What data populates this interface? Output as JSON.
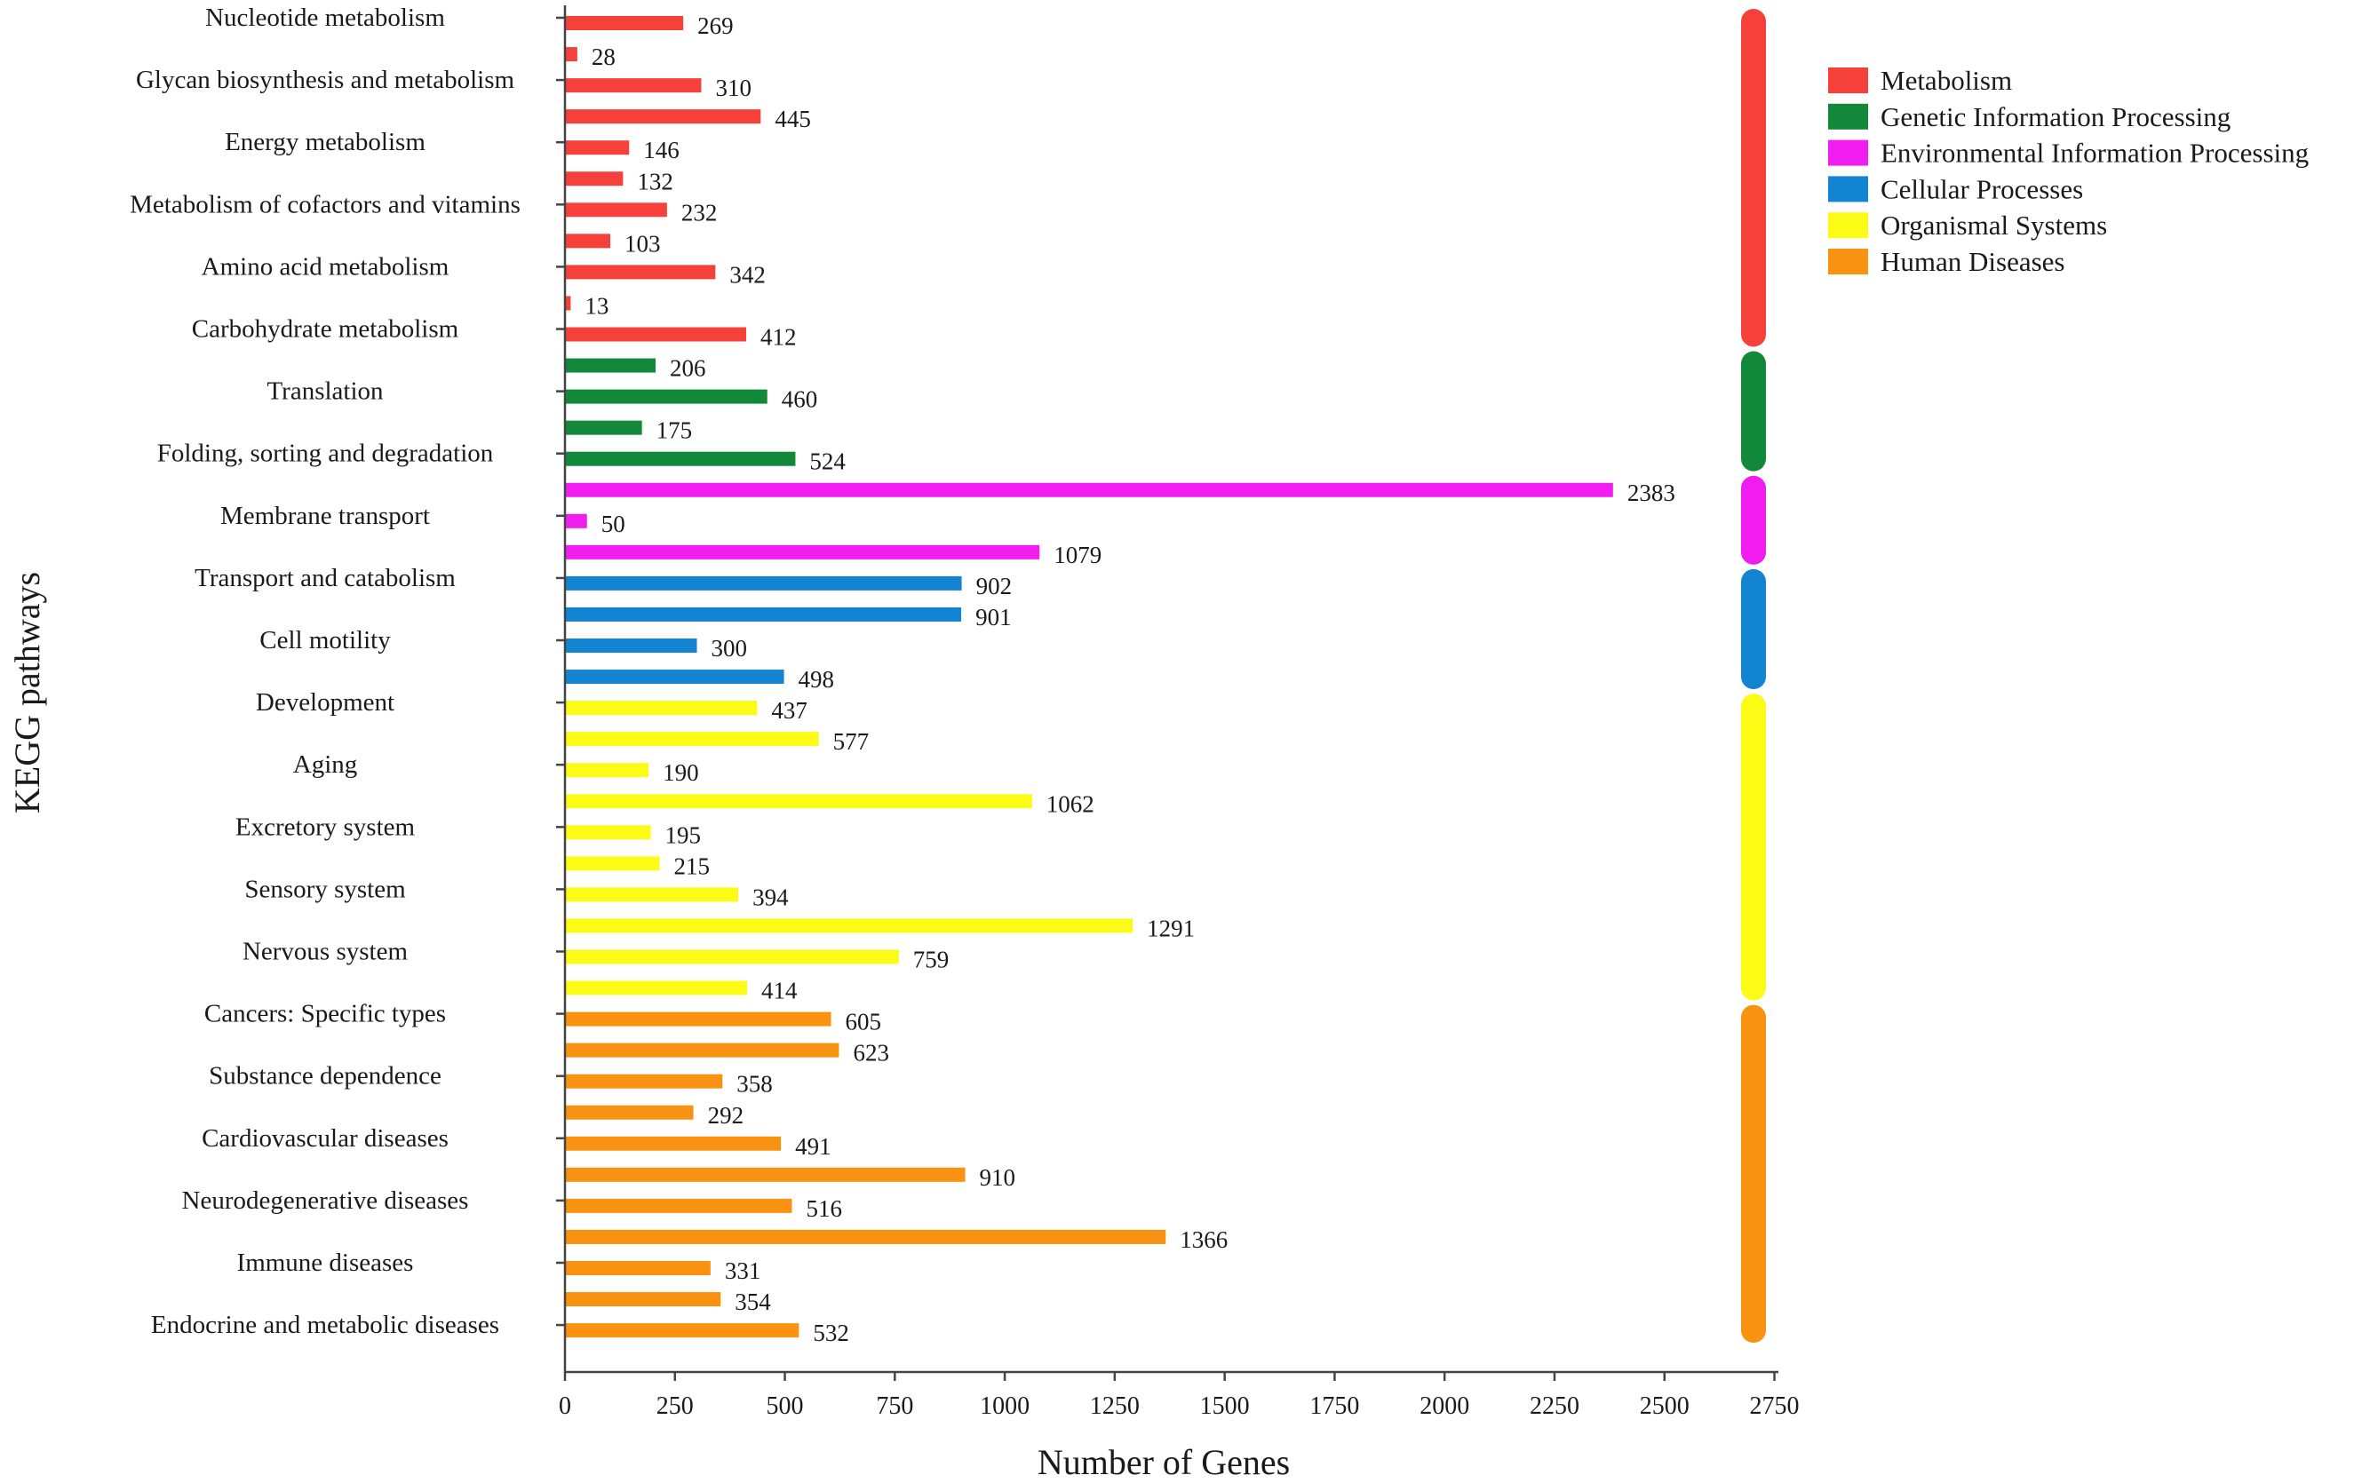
{
  "chart_data": {
    "type": "bar",
    "orientation": "horizontal",
    "xlabel": "Number of Genes",
    "ylabel": "KEGG pathways",
    "xlim": [
      0,
      2750
    ],
    "xticks": [
      0,
      250,
      500,
      750,
      1000,
      1250,
      1500,
      1750,
      2000,
      2250,
      2500,
      2750
    ],
    "bars": [
      {
        "value": 269,
        "category": "Metabolism"
      },
      {
        "value": 28,
        "category": "Metabolism"
      },
      {
        "value": 310,
        "category": "Metabolism"
      },
      {
        "value": 445,
        "category": "Metabolism"
      },
      {
        "value": 146,
        "category": "Metabolism"
      },
      {
        "value": 132,
        "category": "Metabolism"
      },
      {
        "value": 232,
        "category": "Metabolism"
      },
      {
        "value": 103,
        "category": "Metabolism"
      },
      {
        "value": 342,
        "category": "Metabolism"
      },
      {
        "value": 13,
        "category": "Metabolism"
      },
      {
        "value": 412,
        "category": "Metabolism"
      },
      {
        "value": 206,
        "category": "Genetic Information Processing"
      },
      {
        "value": 460,
        "category": "Genetic Information Processing"
      },
      {
        "value": 175,
        "category": "Genetic Information Processing"
      },
      {
        "value": 524,
        "category": "Genetic Information Processing"
      },
      {
        "value": 2383,
        "category": "Environmental Information Processing"
      },
      {
        "value": 50,
        "category": "Environmental Information Processing"
      },
      {
        "value": 1079,
        "category": "Environmental Information Processing"
      },
      {
        "value": 902,
        "category": "Cellular Processes"
      },
      {
        "value": 901,
        "category": "Cellular Processes"
      },
      {
        "value": 300,
        "category": "Cellular Processes"
      },
      {
        "value": 498,
        "category": "Cellular Processes"
      },
      {
        "value": 437,
        "category": "Organismal Systems"
      },
      {
        "value": 577,
        "category": "Organismal Systems"
      },
      {
        "value": 190,
        "category": "Organismal Systems"
      },
      {
        "value": 1062,
        "category": "Organismal Systems"
      },
      {
        "value": 195,
        "category": "Organismal Systems"
      },
      {
        "value": 215,
        "category": "Organismal Systems"
      },
      {
        "value": 394,
        "category": "Organismal Systems"
      },
      {
        "value": 1291,
        "category": "Organismal Systems"
      },
      {
        "value": 759,
        "category": "Organismal Systems"
      },
      {
        "value": 414,
        "category": "Organismal Systems"
      },
      {
        "value": 605,
        "category": "Human Diseases"
      },
      {
        "value": 623,
        "category": "Human Diseases"
      },
      {
        "value": 358,
        "category": "Human Diseases"
      },
      {
        "value": 292,
        "category": "Human Diseases"
      },
      {
        "value": 491,
        "category": "Human Diseases"
      },
      {
        "value": 910,
        "category": "Human Diseases"
      },
      {
        "value": 516,
        "category": "Human Diseases"
      },
      {
        "value": 1366,
        "category": "Human Diseases"
      },
      {
        "value": 331,
        "category": "Human Diseases"
      },
      {
        "value": 354,
        "category": "Human Diseases"
      },
      {
        "value": 532,
        "category": "Human Diseases"
      }
    ],
    "ytick_labels": [
      {
        "label": "Nucleotide metabolism",
        "bar_index": 0
      },
      {
        "label": "Glycan biosynthesis and metabolism",
        "bar_index": 2
      },
      {
        "label": "Energy metabolism",
        "bar_index": 4
      },
      {
        "label": "Metabolism of cofactors and vitamins",
        "bar_index": 6
      },
      {
        "label": "Amino acid metabolism",
        "bar_index": 8
      },
      {
        "label": "Carbohydrate metabolism",
        "bar_index": 10
      },
      {
        "label": "Translation",
        "bar_index": 12
      },
      {
        "label": "Folding, sorting and degradation",
        "bar_index": 14
      },
      {
        "label": "Membrane transport",
        "bar_index": 16
      },
      {
        "label": "Transport and catabolism",
        "bar_index": 18
      },
      {
        "label": "Cell motility",
        "bar_index": 20
      },
      {
        "label": "Development",
        "bar_index": 22
      },
      {
        "label": "Aging",
        "bar_index": 24
      },
      {
        "label": "Excretory system",
        "bar_index": 26
      },
      {
        "label": "Sensory system",
        "bar_index": 28
      },
      {
        "label": "Nervous system",
        "bar_index": 30
      },
      {
        "label": "Cancers: Specific types",
        "bar_index": 32
      },
      {
        "label": "Substance dependence",
        "bar_index": 34
      },
      {
        "label": "Cardiovascular diseases",
        "bar_index": 36
      },
      {
        "label": "Neurodegenerative diseases",
        "bar_index": 38
      },
      {
        "label": "Immune diseases",
        "bar_index": 40
      },
      {
        "label": "Endocrine and metabolic diseases",
        "bar_index": 42
      }
    ],
    "legend": {
      "placement": "top-right",
      "items": [
        {
          "name": "Metabolism",
          "color": "#f5413a"
        },
        {
          "name": "Genetic Information Processing",
          "color": "#12883a"
        },
        {
          "name": "Environmental Information Processing",
          "color": "#f01cf0"
        },
        {
          "name": "Cellular Processes",
          "color": "#1384d2"
        },
        {
          "name": "Organismal Systems",
          "color": "#fbfb16"
        },
        {
          "name": "Human Diseases",
          "color": "#f99211"
        }
      ]
    }
  }
}
